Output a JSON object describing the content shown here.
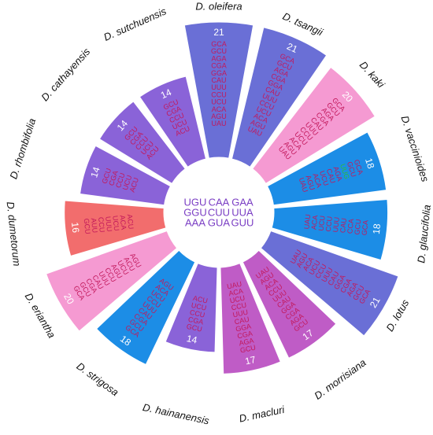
{
  "center_codons": [
    [
      "UGU",
      "CAA",
      "GAA"
    ],
    [
      "GGU",
      "CUU",
      "UUA"
    ],
    [
      "AAA",
      "GUA",
      "GUU"
    ]
  ],
  "colors": {
    "blue_violet": "#6a6fd6",
    "medium_violet": "#8a63d8",
    "pink": "#f59ad2",
    "salmon": "#f26d6d",
    "azure": "#1c8de6",
    "magenta": "#bf5cc6",
    "codon_red": "#c2185b",
    "codon_green": "#2ebd3a",
    "center_text": "#7b3fc4"
  },
  "sectors": [
    {
      "species": "D. oleifera",
      "count": "21",
      "color": "#6a6fd6",
      "codons": [
        "GCA",
        "GCU",
        "AGA",
        "CGA",
        "GGA",
        "CAU",
        "UUU",
        "CCU",
        "UCU",
        "ACA",
        "AGU",
        "UAU"
      ]
    },
    {
      "species": "D. tsangii",
      "count": "21",
      "color": "#6a6fd6",
      "codons": [
        "GCA",
        "GCU",
        "AGA",
        "CGA",
        "GGA",
        "CAU",
        "UUU",
        "CCU",
        "UCU",
        "ACA",
        "AGU",
        "UAU"
      ]
    },
    {
      "species": "D. kaki",
      "count": "20",
      "color": "#f59ad2",
      "codons": [
        "GCA",
        "GCU",
        "AGA",
        "CGA",
        "CAU",
        "UUU",
        "CCU",
        "UCU",
        "ACA",
        "AGU",
        "UAU"
      ]
    },
    {
      "species": "D. vaccinioides",
      "count": "18",
      "color": "#1c8de6",
      "codons": [
        "GCA",
        "GCU",
        "UUG",
        "AGA",
        "CAU",
        "UCU",
        "ACA",
        "AGU",
        "UAU"
      ]
    },
    {
      "species": "D. glaucifolia",
      "count": "18",
      "color": "#1c8de6",
      "codons": [
        "GCA",
        "GCU",
        "CCA",
        "CAU",
        "UUU",
        "CCU",
        "UCU",
        "ACA",
        "UAU"
      ]
    },
    {
      "species": "D. lotus",
      "count": "21",
      "color": "#6a6fd6",
      "codons": [
        "GCA",
        "GCU",
        "AGA",
        "CGA",
        "GGA",
        "CAU",
        "UUU",
        "CCU",
        "UCU",
        "ACA",
        "AGU",
        "UAU"
      ]
    },
    {
      "species": "D. morrisiana",
      "count": "17",
      "color": "#bf5cc6",
      "codons": [
        "GCU",
        "AGA",
        "CGA",
        "GGA",
        "CAU",
        "UUU",
        "CCU",
        "ACA",
        "AGU",
        "UAU"
      ]
    },
    {
      "species": "D. macluri",
      "count": "17",
      "color": "#bf5cc6",
      "codons": [
        "GCU",
        "AGA",
        "CGA",
        "GGA",
        "CAU",
        "UUU",
        "CCU",
        "UCU",
        "ACA",
        "UAU"
      ]
    },
    {
      "species": "D. hainanensis",
      "count": "14",
      "color": "#8a63d8",
      "codons": [
        "GCU",
        "CGA",
        "CCU",
        "UCU",
        "ACU"
      ]
    },
    {
      "species": "D. strigosa",
      "count": "18",
      "color": "#1c8de6",
      "codons": [
        "GCA",
        "GCU",
        "CGA",
        "CAU",
        "UUU",
        "CCU",
        "UCU",
        "ACA",
        "AGU"
      ]
    },
    {
      "species": "D. eriantha",
      "count": "20",
      "color": "#f59ad2",
      "codons": [
        "GCA",
        "GCU",
        "CGA",
        "CAU",
        "UUU",
        "CCU",
        "AGU",
        "UCU",
        "ACU",
        "AGU"
      ]
    },
    {
      "species": "D. dumetorum",
      "count": "16",
      "color": "#f26d6d",
      "codons": [
        "GCU",
        "AUU",
        "CCU",
        "UUU",
        "UCU",
        "ACA",
        "ACU"
      ]
    },
    {
      "species": "D. rhombifolia",
      "count": "14",
      "color": "#8a63d8",
      "codons": [
        "GCU",
        "CGA",
        "CCU",
        "UCU",
        "ACU"
      ]
    },
    {
      "species": "D. cathayensis",
      "count": "14",
      "color": "#8a63d8",
      "codons": [
        "GCU",
        "CGA",
        "CCU",
        "UCU",
        "ACU"
      ]
    },
    {
      "species": "D. sutchuensis",
      "count": "14",
      "color": "#8a63d8",
      "codons": [
        "GCU",
        "CGA",
        "CCU",
        "UCU",
        "ACU"
      ]
    }
  ]
}
